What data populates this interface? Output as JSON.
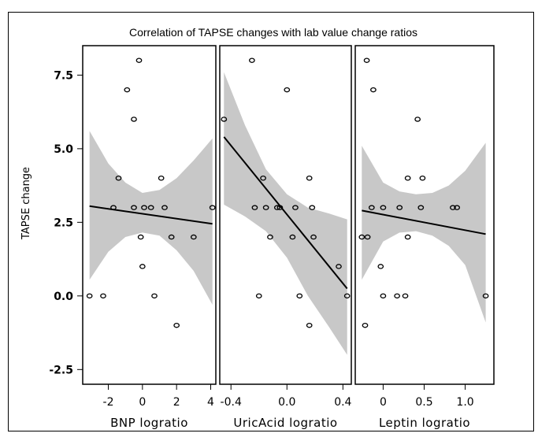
{
  "chart_data": {
    "type": "scatter",
    "title": "Correlation of TAPSE changes with lab value change ratios",
    "ylabel": "TAPSE change",
    "ylim": [
      -3.0,
      8.5
    ],
    "yticks": [
      -2.5,
      0.0,
      2.5,
      5.0,
      7.5
    ],
    "ytick_labels": [
      "-2.5",
      "0.0",
      "2.5",
      "5.0",
      "7.5"
    ],
    "grid": false,
    "legend": "none",
    "colors": {
      "points": "#000000",
      "fit_line": "#000000",
      "band": "#c8c8c8",
      "frame": "#000000"
    },
    "panels": [
      {
        "xlabel": "BNP logratio",
        "xlim": [
          -3.5,
          4.3
        ],
        "xticks": [
          -2,
          0,
          2,
          4
        ],
        "xtick_labels": [
          "-2",
          "0",
          "2",
          "4"
        ],
        "points": [
          {
            "x": -3.1,
            "y": 0
          },
          {
            "x": -2.3,
            "y": 0
          },
          {
            "x": -0.2,
            "y": 8
          },
          {
            "x": -0.9,
            "y": 7
          },
          {
            "x": -0.5,
            "y": 6
          },
          {
            "x": -1.4,
            "y": 4
          },
          {
            "x": 1.1,
            "y": 4
          },
          {
            "x": -1.7,
            "y": 3
          },
          {
            "x": -0.5,
            "y": 3
          },
          {
            "x": 0.1,
            "y": 3
          },
          {
            "x": 0.5,
            "y": 3
          },
          {
            "x": 1.3,
            "y": 3
          },
          {
            "x": 4.1,
            "y": 3
          },
          {
            "x": -0.1,
            "y": 2
          },
          {
            "x": 1.7,
            "y": 2
          },
          {
            "x": 3.0,
            "y": 2
          },
          {
            "x": 0.0,
            "y": 1
          },
          {
            "x": 0.7,
            "y": 0
          },
          {
            "x": 2.0,
            "y": -1
          }
        ],
        "fit": {
          "x": [
            -3.1,
            4.1
          ],
          "y": [
            3.05,
            2.45
          ]
        },
        "band": {
          "x": [
            -3.1,
            -2.0,
            -1.0,
            0.0,
            1.0,
            2.0,
            3.0,
            4.1
          ],
          "upper": [
            5.6,
            4.5,
            3.85,
            3.5,
            3.6,
            4.0,
            4.6,
            5.35
          ],
          "lower": [
            0.55,
            1.5,
            2.0,
            2.15,
            2.05,
            1.55,
            0.85,
            -0.3
          ]
        }
      },
      {
        "xlabel": "UricAcid logratio",
        "xlim": [
          -0.48,
          0.46
        ],
        "xticks": [
          -0.4,
          0.0,
          0.4
        ],
        "xtick_labels": [
          "-0.4",
          "0.0",
          "0.4"
        ],
        "points": [
          {
            "x": -0.45,
            "y": 6
          },
          {
            "x": -0.25,
            "y": 8
          },
          {
            "x": 0.0,
            "y": 7
          },
          {
            "x": -0.17,
            "y": 4
          },
          {
            "x": 0.16,
            "y": 4
          },
          {
            "x": -0.23,
            "y": 3
          },
          {
            "x": -0.15,
            "y": 3
          },
          {
            "x": -0.07,
            "y": 3
          },
          {
            "x": -0.05,
            "y": 3
          },
          {
            "x": 0.06,
            "y": 3
          },
          {
            "x": 0.18,
            "y": 3
          },
          {
            "x": -0.12,
            "y": 2
          },
          {
            "x": 0.04,
            "y": 2
          },
          {
            "x": 0.19,
            "y": 2
          },
          {
            "x": 0.37,
            "y": 1
          },
          {
            "x": -0.2,
            "y": 0
          },
          {
            "x": 0.09,
            "y": 0
          },
          {
            "x": 0.43,
            "y": 0
          },
          {
            "x": 0.16,
            "y": -1
          }
        ],
        "fit": {
          "x": [
            -0.45,
            0.43
          ],
          "y": [
            5.4,
            0.25
          ]
        },
        "band": {
          "x": [
            -0.45,
            -0.3,
            -0.15,
            0.0,
            0.15,
            0.3,
            0.43
          ],
          "upper": [
            7.6,
            5.8,
            4.3,
            3.45,
            3.0,
            2.8,
            2.6
          ],
          "lower": [
            3.1,
            2.7,
            2.2,
            1.3,
            0.0,
            -1.05,
            -2.0
          ]
        }
      },
      {
        "xlabel": "Leptin logratio",
        "xlim": [
          -0.34,
          1.35
        ],
        "xticks": [
          0.0,
          0.5,
          1.0
        ],
        "xtick_labels": [
          "0",
          "0.5",
          "1.0"
        ],
        "points": [
          {
            "x": -0.2,
            "y": 8
          },
          {
            "x": -0.12,
            "y": 7
          },
          {
            "x": 0.42,
            "y": 6
          },
          {
            "x": 0.3,
            "y": 4
          },
          {
            "x": 0.48,
            "y": 4
          },
          {
            "x": -0.14,
            "y": 3
          },
          {
            "x": 0.0,
            "y": 3
          },
          {
            "x": 0.2,
            "y": 3
          },
          {
            "x": 0.46,
            "y": 3
          },
          {
            "x": 0.85,
            "y": 3
          },
          {
            "x": 0.9,
            "y": 3
          },
          {
            "x": -0.26,
            "y": 2
          },
          {
            "x": -0.19,
            "y": 2
          },
          {
            "x": 0.3,
            "y": 2
          },
          {
            "x": -0.03,
            "y": 1
          },
          {
            "x": 0.0,
            "y": 0
          },
          {
            "x": 0.17,
            "y": 0
          },
          {
            "x": 0.27,
            "y": 0
          },
          {
            "x": 1.25,
            "y": 0
          },
          {
            "x": -0.22,
            "y": -1
          }
        ],
        "fit": {
          "x": [
            -0.26,
            1.25
          ],
          "y": [
            2.9,
            2.1
          ]
        },
        "band": {
          "x": [
            -0.26,
            0.0,
            0.2,
            0.4,
            0.6,
            0.8,
            1.0,
            1.25
          ],
          "upper": [
            5.1,
            3.85,
            3.55,
            3.45,
            3.5,
            3.75,
            4.25,
            5.2
          ],
          "lower": [
            0.55,
            1.85,
            2.15,
            2.2,
            2.05,
            1.7,
            1.05,
            -0.9
          ]
        }
      }
    ]
  }
}
